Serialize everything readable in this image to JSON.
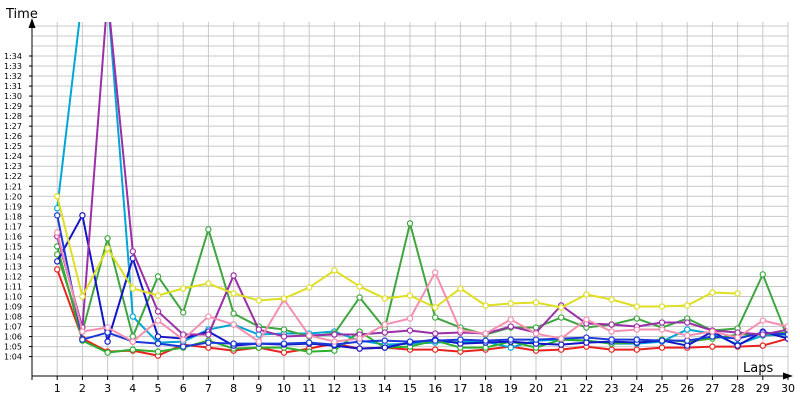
{
  "chart_data": {
    "type": "line",
    "xlabel": "Laps",
    "ylabel": "Time",
    "x": [
      1,
      2,
      3,
      4,
      5,
      6,
      7,
      8,
      9,
      10,
      11,
      12,
      13,
      14,
      15,
      16,
      17,
      18,
      19,
      20,
      21,
      22,
      23,
      24,
      25,
      26,
      27,
      28,
      29,
      30
    ],
    "y_ticks": [
      "1:04",
      "1:05",
      "1:06",
      "1:07",
      "1:08",
      "1:09",
      "1:10",
      "1:11",
      "1:12",
      "1:13",
      "1:14",
      "1:15",
      "1:16",
      "1:17",
      "1:18",
      "1:19",
      "1:20",
      "1:21",
      "1:22",
      "1:23",
      "1:24",
      "1:25",
      "1:26",
      "1:27",
      "1:28",
      "1:29",
      "1:30",
      "1:31",
      "1:32",
      "1:33",
      "1:34"
    ],
    "ylim": [
      "1:03",
      "1:39"
    ],
    "xlim": [
      0,
      30
    ],
    "grid": true,
    "legend": "none",
    "series": [
      {
        "color": "#e8231f",
        "values": [
          "1:12.7",
          "1:05.8",
          "1:04.5",
          "1:04.6",
          "1:04.1",
          "1:05.2",
          "1:04.9",
          "1:04.6",
          "1:04.9",
          "1:04.4",
          "1:04.8",
          "1:05.3",
          "1:04.8",
          "1:04.9",
          "1:04.7",
          "1:04.7",
          "1:04.5",
          "1:04.7",
          "1:05.0",
          "1:04.6",
          "1:04.7",
          "1:05.0",
          "1:04.7",
          "1:04.7",
          "1:04.9",
          "1:04.9",
          "1:05.0",
          "1:05.0",
          "1:05.1",
          "1:05.8"
        ]
      },
      {
        "color": "#00a6d6",
        "values": [
          "1:18.8",
          "1:40",
          "1:40",
          "1:08.0",
          "1:05.4",
          "1:05.5",
          "1:06.7",
          "1:07.2",
          "1:06.2",
          "1:06.3",
          "1:06.3",
          "1:06.5",
          "1:05.6",
          "1:05.2",
          "1:05.3",
          "1:05.4",
          "1:05.5",
          "1:05.5",
          "1:04.9",
          "1:05.6",
          "1:05.7",
          "1:05.6",
          "1:05.3",
          "1:05.3",
          "1:05.5",
          "1:06.7",
          "1:06.3",
          "1:05.2",
          "1:06.1",
          "1:06.2"
        ]
      },
      {
        "color": "#2db02d",
        "values": [
          "1:15.0",
          "1:05.6",
          "1:04.4",
          "1:04.7",
          "1:04.5",
          "1:04.9",
          "1:05.6",
          "1:04.8",
          "1:04.9",
          "1:04.9",
          "1:04.5",
          "1:04.6",
          "1:06.5",
          "1:04.9",
          "1:05.0",
          "1:05.6",
          "1:04.9",
          "1:04.9",
          "1:05.5",
          "1:04.9",
          "1:05.7",
          "1:05.6",
          "1:05.3",
          "1:05.4",
          "1:05.7",
          "1:05.5",
          "1:05.8",
          "1:06.2",
          "1:06.2",
          "1:06.4"
        ]
      },
      {
        "color": "#3fa63f",
        "values": [
          "1:14.2",
          "1:06.5",
          "1:15.8",
          "1:06.0",
          "1:12.0",
          "1:08.4",
          "1:16.7",
          "1:08.3",
          "1:07.0",
          "1:06.7",
          "1:06.0",
          "1:06.3",
          "1:09.9",
          "1:06.8",
          "1:17.3",
          "1:07.9",
          "1:06.9",
          "1:06.2",
          "1:06.9",
          "1:06.9",
          "1:07.9",
          "1:06.9",
          "1:07.2",
          "1:07.8",
          "1:06.9",
          "1:07.8",
          "1:06.6",
          "1:06.8",
          "1:12.2",
          "1:05.8"
        ]
      },
      {
        "color": "#1515c8",
        "values": [
          "1:13.5",
          "1:18.1",
          "1:05.5",
          "1:13.8",
          "1:06.0",
          "1:05.8",
          "1:06.5",
          "1:05.1",
          "1:05.3",
          "1:05.2",
          "1:05.3",
          "1:05.1",
          "1:04.8",
          "1:04.9",
          "1:05.4",
          "1:05.7",
          "1:05.3",
          "1:05.4",
          "1:05.5",
          "1:05.3",
          "1:05.2",
          "1:05.4",
          "1:05.5",
          "1:05.4",
          "1:05.6",
          "1:05.1",
          "1:06.5",
          "1:05.1",
          "1:06.5",
          "1:05.8"
        ]
      },
      {
        "color": "#1a38d8",
        "values": [
          "1:18.1",
          "1:05.7",
          "1:06.4",
          "1:05.5",
          "1:05.3",
          "1:05.0",
          "1:05.4",
          "1:05.3",
          "1:05.3",
          "1:05.3",
          "1:05.4",
          "1:05.2",
          "1:05.5",
          "1:05.6",
          "1:05.5",
          "1:05.6",
          "1:05.7",
          "1:05.6",
          "1:05.7",
          "1:05.7",
          "1:05.8",
          "1:05.9",
          "1:05.7",
          "1:05.7",
          "1:05.6",
          "1:05.6",
          "1:06.0",
          "1:05.8",
          "1:06.4",
          "1:06.2"
        ]
      },
      {
        "color": "#9a2fa8",
        "values": [
          "1:16.0",
          "1:06.9",
          "1:40",
          "1:14.5",
          "1:08.5",
          "1:06.2",
          "1:06.2",
          "1:12.1",
          "1:06.7",
          "1:06.0",
          "1:06.1",
          "1:06.2",
          "1:06.2",
          "1:06.4",
          "1:06.6",
          "1:06.3",
          "1:06.4",
          "1:06.3",
          "1:07.0",
          "1:06.4",
          "1:09.1",
          "1:07.3",
          "1:07.2",
          "1:07.0",
          "1:07.4",
          "1:07.4",
          "1:06.6",
          "1:06.4",
          "1:06.2",
          "1:06.7"
        ]
      },
      {
        "color": "#f48fb1",
        "values": [
          "1:16.4",
          "1:06.5",
          "1:06.9",
          "1:05.5",
          "1:07.6",
          "1:05.7",
          "1:08.0",
          "1:07.2",
          "1:05.5",
          "1:09.7",
          "1:06.1",
          "1:05.5",
          "1:05.8",
          "1:07.2",
          "1:07.8",
          "1:12.4",
          "1:06.6",
          "1:06.3",
          "1:07.7",
          "1:06.3",
          "1:05.8",
          "1:07.7",
          "1:06.5",
          "1:06.7",
          "1:06.7",
          "1:06.1",
          "1:06.5",
          "1:05.9",
          "1:07.6",
          "1:07.0"
        ]
      },
      {
        "color": "#dede22",
        "values": [
          "1:20.0",
          "1:10.0",
          "1:14.8",
          "1:10.8",
          "1:10.1",
          "1:10.8",
          "1:11.3",
          "1:10.3",
          "1:09.6",
          "1:09.8",
          "1:10.9",
          "1:12.6",
          "1:11.0",
          "1:09.8",
          "1:10.1",
          "1:08.9",
          "1:10.8",
          "1:09.1",
          "1:09.3",
          "1:09.4",
          "1:08.9",
          "1:10.2",
          "1:09.7",
          "1:09.0",
          "1:09.0",
          "1:09.1",
          "1:10.4",
          "1:10.3",
          null,
          null
        ]
      }
    ]
  }
}
